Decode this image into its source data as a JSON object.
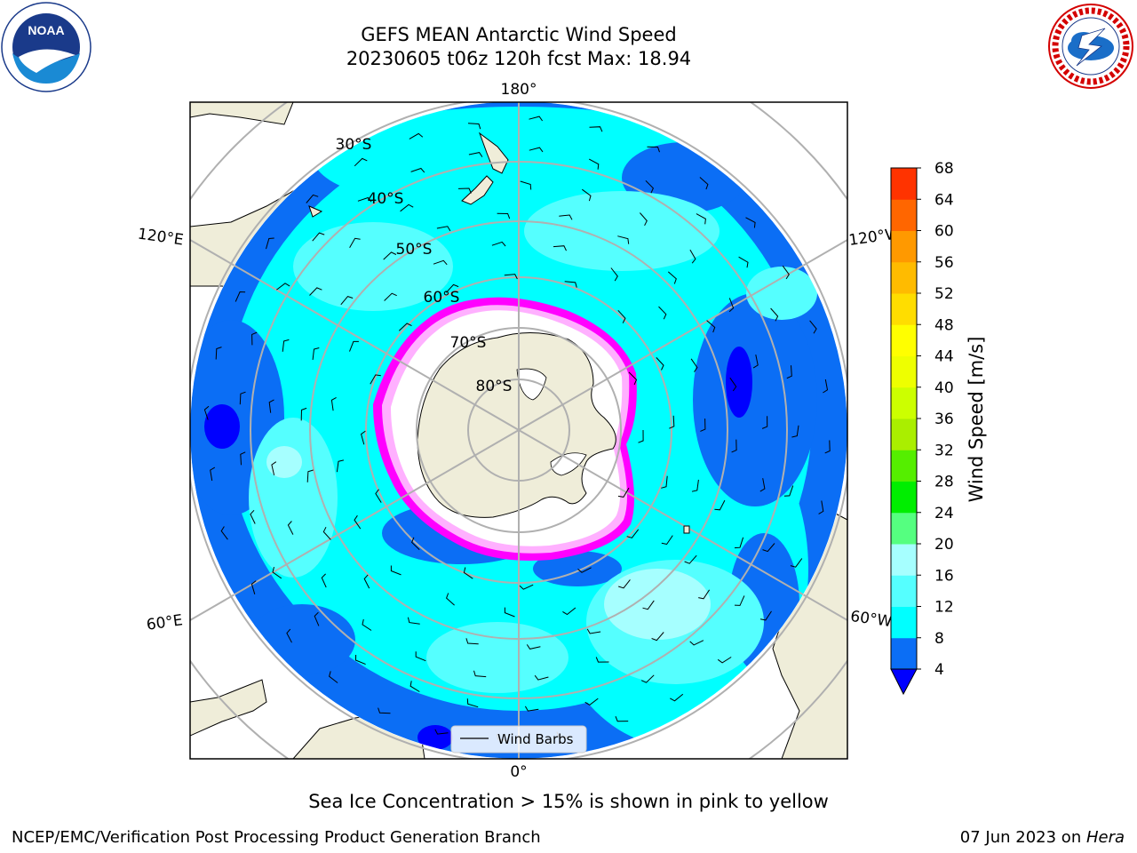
{
  "header": {
    "title_line1": "GEFS MEAN Antarctic Wind Speed",
    "title_line2": "20230605 t06z 120h fcst   Max: 18.94"
  },
  "map": {
    "meridian_labels": {
      "top": "180°",
      "bottom": "0°",
      "upper_left": "120°E",
      "upper_right": "120°W",
      "lower_left": "60°E",
      "lower_right": "60°W"
    },
    "latitude_labels": [
      "30°S",
      "40°S",
      "50°S",
      "60°S",
      "70°S",
      "80°S"
    ],
    "legend_label": "Wind Barbs",
    "colors": {
      "land": "#efedd9",
      "ocean_4_8": "#0b6ef5",
      "ocean_8_12": "#00ffff",
      "ocean_12_16": "#55ffff",
      "ocean_16_20": "#a6ffff",
      "ocean_lt4": "#0000ff",
      "sea_ice_edge": "#ff00ff",
      "sea_ice_inner": "#ffff44",
      "grid": "#b0b0b0"
    }
  },
  "colorbar": {
    "label": "Wind Speed [m/s]",
    "ticks": [
      "4",
      "8",
      "12",
      "16",
      "20",
      "24",
      "28",
      "32",
      "36",
      "40",
      "44",
      "48",
      "52",
      "56",
      "60",
      "64",
      "68"
    ],
    "colors": [
      "#0b6ef5",
      "#00ffff",
      "#55ffff",
      "#a6ffff",
      "#55ff80",
      "#00ee00",
      "#55ee00",
      "#aaee00",
      "#ccff00",
      "#eeff00",
      "#ffff00",
      "#ffdd00",
      "#ffbb00",
      "#ff9900",
      "#ff6600",
      "#ff3300",
      "#ff0000"
    ],
    "underflow_color": "#0000ff"
  },
  "footer": {
    "subtitle": "Sea Ice Concentration > 15% is shown in pink to yellow",
    "left": "NCEP/EMC/Verification Post Processing Product Generation Branch",
    "right_date": "07 Jun 2023 on ",
    "right_host": "Hera"
  },
  "logos": {
    "left": "noara-logo",
    "left_text": "NOAA",
    "right": "nws-logo"
  }
}
